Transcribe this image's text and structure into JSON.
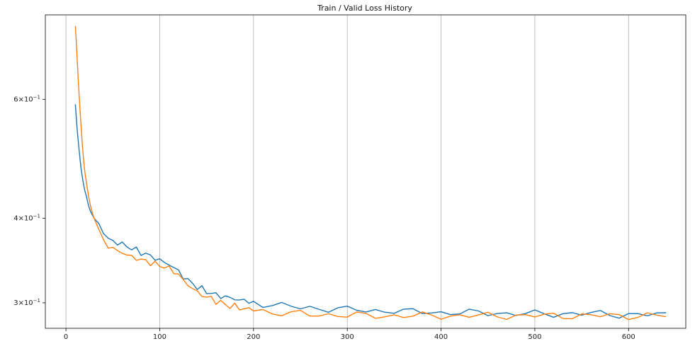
{
  "chart_data": {
    "type": "line",
    "title": "Train / Valid Loss History",
    "xlabel": "",
    "ylabel": "",
    "xlim": [
      -22,
      661
    ],
    "ylim": [
      0.275,
      0.8
    ],
    "yscale": "log",
    "grid": {
      "x": true,
      "y": false
    },
    "x_ticks": [
      0,
      100,
      200,
      300,
      400,
      500,
      600
    ],
    "x_tick_labels": [
      "0",
      "100",
      "200",
      "300",
      "400",
      "500",
      "600"
    ],
    "y_ticks": [
      0.6,
      0.4,
      0.3
    ],
    "y_tick_labels": [
      {
        "base": "6",
        "exp": "−1"
      },
      {
        "base": "4",
        "exp": "−1"
      },
      {
        "base": "3",
        "exp": "−1"
      }
    ],
    "series": [
      {
        "color": "#1f77b4",
        "x": [
          10,
          12,
          14,
          16,
          18,
          20,
          22,
          24,
          26,
          28,
          30,
          35,
          40,
          45,
          50,
          55,
          60,
          65,
          70,
          75,
          80,
          85,
          90,
          95,
          100,
          105,
          110,
          115,
          120,
          125,
          130,
          135,
          140,
          145,
          150,
          155,
          160,
          165,
          170,
          175,
          180,
          185,
          190,
          195,
          200,
          210,
          220,
          230,
          240,
          250,
          260,
          270,
          280,
          290,
          300,
          310,
          320,
          330,
          340,
          350,
          360,
          370,
          380,
          390,
          400,
          410,
          420,
          430,
          440,
          450,
          460,
          470,
          480,
          490,
          500,
          510,
          520,
          530,
          540,
          550,
          560,
          570,
          580,
          590,
          600,
          610,
          620,
          630,
          640
        ],
        "y": [
          0.59,
          0.54,
          0.505,
          0.475,
          0.455,
          0.44,
          0.43,
          0.418,
          0.41,
          0.405,
          0.4,
          0.393,
          0.381,
          0.373,
          0.37,
          0.368,
          0.366,
          0.364,
          0.361,
          0.359,
          0.356,
          0.354,
          0.352,
          0.349,
          0.347,
          0.344,
          0.342,
          0.338,
          0.334,
          0.328,
          0.324,
          0.32,
          0.317,
          0.314,
          0.312,
          0.31,
          0.308,
          0.307,
          0.306,
          0.305,
          0.304,
          0.303,
          0.302,
          0.3015,
          0.301,
          0.299,
          0.298,
          0.297,
          0.296,
          0.295,
          0.295,
          0.294,
          0.294,
          0.294,
          0.293,
          0.293,
          0.292,
          0.292,
          0.292,
          0.292,
          0.291,
          0.291,
          0.291,
          0.291,
          0.29,
          0.29,
          0.29,
          0.29,
          0.29,
          0.29,
          0.29,
          0.289,
          0.289,
          0.289,
          0.289,
          0.289,
          0.289,
          0.289,
          0.289,
          0.289,
          0.289,
          0.289,
          0.289,
          0.288,
          0.288,
          0.288,
          0.288,
          0.288,
          0.288
        ]
      },
      {
        "color": "#ff7f0e",
        "x": [
          10,
          11,
          12,
          13,
          14,
          15,
          16,
          17,
          18,
          19,
          20,
          22,
          24,
          26,
          28,
          30,
          35,
          40,
          45,
          50,
          55,
          60,
          65,
          70,
          75,
          80,
          85,
          90,
          95,
          100,
          105,
          110,
          115,
          120,
          125,
          130,
          135,
          140,
          145,
          150,
          155,
          160,
          165,
          170,
          175,
          180,
          185,
          190,
          195,
          200,
          210,
          220,
          230,
          240,
          250,
          260,
          270,
          280,
          290,
          300,
          310,
          320,
          330,
          340,
          350,
          360,
          370,
          380,
          390,
          400,
          410,
          420,
          430,
          440,
          450,
          460,
          470,
          480,
          490,
          500,
          510,
          520,
          530,
          540,
          550,
          560,
          570,
          580,
          590,
          600,
          610,
          620,
          630,
          640
        ],
        "y": [
          0.77,
          0.73,
          0.685,
          0.645,
          0.61,
          0.578,
          0.55,
          0.525,
          0.503,
          0.485,
          0.47,
          0.45,
          0.432,
          0.418,
          0.408,
          0.4,
          0.385,
          0.37,
          0.364,
          0.361,
          0.358,
          0.356,
          0.353,
          0.351,
          0.349,
          0.347,
          0.346,
          0.344,
          0.342,
          0.341,
          0.339,
          0.337,
          0.334,
          0.33,
          0.324,
          0.319,
          0.315,
          0.311,
          0.308,
          0.306,
          0.304,
          0.302,
          0.3,
          0.298,
          0.297,
          0.296,
          0.295,
          0.294,
          0.2935,
          0.293,
          0.292,
          0.29,
          0.29,
          0.289,
          0.289,
          0.288,
          0.288,
          0.288,
          0.288,
          0.2875,
          0.2875,
          0.287,
          0.287,
          0.287,
          0.287,
          0.287,
          0.287,
          0.287,
          0.287,
          0.287,
          0.287,
          0.287,
          0.287,
          0.287,
          0.287,
          0.287,
          0.287,
          0.287,
          0.287,
          0.287,
          0.287,
          0.287,
          0.287,
          0.287,
          0.287,
          0.287,
          0.287,
          0.287,
          0.287,
          0.287,
          0.287,
          0.287,
          0.287,
          0.287
        ]
      }
    ]
  }
}
